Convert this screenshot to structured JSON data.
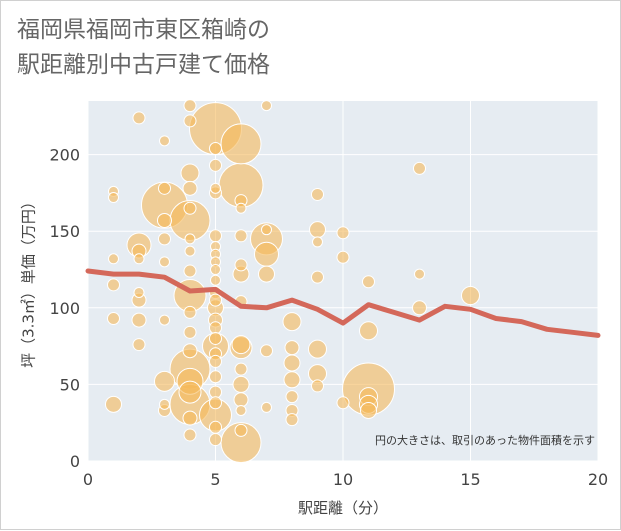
{
  "title": {
    "line1": "福岡県福岡市東区箱崎の",
    "line2": "駅距離別中古戸建て価格"
  },
  "colors": {
    "bubble": "#f5b95a",
    "line": "#d4685a",
    "plot_bg": "#e6ecf2",
    "grid": "#ffffff"
  },
  "chart_data": {
    "type": "scatter",
    "title": "福岡県福岡市東区箱崎の駅距離別中古戸建て価格",
    "xlabel": "駅距離（分）",
    "ylabel": "坪（3.3㎡）単価（万円）",
    "xlim": [
      0,
      20
    ],
    "ylim": [
      0,
      235
    ],
    "x_ticks": [
      0,
      5,
      10,
      15,
      20
    ],
    "y_ticks": [
      0,
      50,
      100,
      150,
      200
    ],
    "grid": true,
    "note": "円の大きさは、取引のあった物件面積を示す",
    "trend_line": {
      "x": [
        0,
        1,
        2,
        3,
        4,
        5,
        6,
        7,
        8,
        9,
        10,
        11,
        12,
        13,
        14,
        15,
        16,
        17,
        18,
        19,
        20
      ],
      "y": [
        124,
        122,
        122,
        120,
        111,
        112,
        101,
        100,
        105,
        99,
        90,
        102,
        97,
        92,
        101,
        99,
        93,
        91,
        86,
        84,
        82
      ]
    },
    "points": [
      {
        "x": 1,
        "y": 176,
        "s": 5
      },
      {
        "x": 1,
        "y": 172,
        "s": 5
      },
      {
        "x": 1,
        "y": 132,
        "s": 5
      },
      {
        "x": 1,
        "y": 115,
        "s": 6
      },
      {
        "x": 1,
        "y": 93,
        "s": 6
      },
      {
        "x": 1,
        "y": 37,
        "s": 8
      },
      {
        "x": 2,
        "y": 224,
        "s": 6
      },
      {
        "x": 2,
        "y": 141,
        "s": 12
      },
      {
        "x": 2,
        "y": 137,
        "s": 7
      },
      {
        "x": 2,
        "y": 132,
        "s": 5
      },
      {
        "x": 2,
        "y": 110,
        "s": 5
      },
      {
        "x": 2,
        "y": 105,
        "s": 7
      },
      {
        "x": 2,
        "y": 92,
        "s": 7
      },
      {
        "x": 2,
        "y": 76,
        "s": 6
      },
      {
        "x": 3,
        "y": 209,
        "s": 5
      },
      {
        "x": 3,
        "y": 178,
        "s": 6
      },
      {
        "x": 3,
        "y": 167,
        "s": 23
      },
      {
        "x": 3,
        "y": 157,
        "s": 7
      },
      {
        "x": 3,
        "y": 145,
        "s": 6
      },
      {
        "x": 3,
        "y": 130,
        "s": 5
      },
      {
        "x": 3,
        "y": 92,
        "s": 5
      },
      {
        "x": 3,
        "y": 52,
        "s": 10
      },
      {
        "x": 3,
        "y": 37,
        "s": 5
      },
      {
        "x": 3,
        "y": 33,
        "s": 6
      },
      {
        "x": 4,
        "y": 232,
        "s": 6
      },
      {
        "x": 4,
        "y": 222,
        "s": 6
      },
      {
        "x": 4,
        "y": 188,
        "s": 9
      },
      {
        "x": 4,
        "y": 178,
        "s": 7
      },
      {
        "x": 4,
        "y": 165,
        "s": 6
      },
      {
        "x": 4,
        "y": 157,
        "s": 20
      },
      {
        "x": 4,
        "y": 145,
        "s": 5
      },
      {
        "x": 4,
        "y": 137,
        "s": 5
      },
      {
        "x": 4,
        "y": 124,
        "s": 6
      },
      {
        "x": 4,
        "y": 108,
        "s": 16
      },
      {
        "x": 4,
        "y": 97,
        "s": 6
      },
      {
        "x": 4,
        "y": 84,
        "s": 6
      },
      {
        "x": 4,
        "y": 72,
        "s": 7
      },
      {
        "x": 4,
        "y": 60,
        "s": 20
      },
      {
        "x": 4,
        "y": 52,
        "s": 13
      },
      {
        "x": 4,
        "y": 45,
        "s": 11
      },
      {
        "x": 4,
        "y": 37,
        "s": 20
      },
      {
        "x": 4,
        "y": 28,
        "s": 7
      },
      {
        "x": 4,
        "y": 17,
        "s": 6
      },
      {
        "x": 5,
        "y": 217,
        "s": 26
      },
      {
        "x": 5,
        "y": 204,
        "s": 6
      },
      {
        "x": 5,
        "y": 193,
        "s": 6
      },
      {
        "x": 5,
        "y": 178,
        "s": 5
      },
      {
        "x": 5,
        "y": 175,
        "s": 6
      },
      {
        "x": 5,
        "y": 147,
        "s": 6
      },
      {
        "x": 5,
        "y": 140,
        "s": 5
      },
      {
        "x": 5,
        "y": 135,
        "s": 5
      },
      {
        "x": 5,
        "y": 130,
        "s": 5
      },
      {
        "x": 5,
        "y": 125,
        "s": 5
      },
      {
        "x": 5,
        "y": 118,
        "s": 5
      },
      {
        "x": 5,
        "y": 110,
        "s": 6
      },
      {
        "x": 5,
        "y": 105,
        "s": 6
      },
      {
        "x": 5,
        "y": 100,
        "s": 8
      },
      {
        "x": 5,
        "y": 92,
        "s": 7
      },
      {
        "x": 5,
        "y": 87,
        "s": 6
      },
      {
        "x": 5,
        "y": 80,
        "s": 6
      },
      {
        "x": 5,
        "y": 75,
        "s": 13
      },
      {
        "x": 5,
        "y": 70,
        "s": 6
      },
      {
        "x": 5,
        "y": 65,
        "s": 6
      },
      {
        "x": 5,
        "y": 55,
        "s": 6
      },
      {
        "x": 5,
        "y": 45,
        "s": 6
      },
      {
        "x": 5,
        "y": 38,
        "s": 6
      },
      {
        "x": 5,
        "y": 30,
        "s": 16
      },
      {
        "x": 5,
        "y": 22,
        "s": 6
      },
      {
        "x": 5,
        "y": 14,
        "s": 6
      },
      {
        "x": 6,
        "y": 207,
        "s": 20
      },
      {
        "x": 6,
        "y": 180,
        "s": 22
      },
      {
        "x": 6,
        "y": 170,
        "s": 6
      },
      {
        "x": 6,
        "y": 165,
        "s": 5
      },
      {
        "x": 6,
        "y": 147,
        "s": 6
      },
      {
        "x": 6,
        "y": 128,
        "s": 6
      },
      {
        "x": 6,
        "y": 122,
        "s": 8
      },
      {
        "x": 6,
        "y": 104,
        "s": 6
      },
      {
        "x": 6,
        "y": 76,
        "s": 9
      },
      {
        "x": 6,
        "y": 74,
        "s": 11
      },
      {
        "x": 6,
        "y": 60,
        "s": 6
      },
      {
        "x": 6,
        "y": 50,
        "s": 8
      },
      {
        "x": 6,
        "y": 40,
        "s": 7
      },
      {
        "x": 6,
        "y": 33,
        "s": 5
      },
      {
        "x": 6,
        "y": 20,
        "s": 6
      },
      {
        "x": 6,
        "y": 12,
        "s": 20
      },
      {
        "x": 7,
        "y": 232,
        "s": 5
      },
      {
        "x": 7,
        "y": 151,
        "s": 5
      },
      {
        "x": 7,
        "y": 145,
        "s": 16
      },
      {
        "x": 7,
        "y": 135,
        "s": 12
      },
      {
        "x": 7,
        "y": 122,
        "s": 8
      },
      {
        "x": 7,
        "y": 72,
        "s": 6
      },
      {
        "x": 7,
        "y": 35,
        "s": 5
      },
      {
        "x": 8,
        "y": 91,
        "s": 9
      },
      {
        "x": 8,
        "y": 74,
        "s": 7
      },
      {
        "x": 8,
        "y": 64,
        "s": 8
      },
      {
        "x": 8,
        "y": 53,
        "s": 8
      },
      {
        "x": 8,
        "y": 42,
        "s": 6
      },
      {
        "x": 8,
        "y": 33,
        "s": 6
      },
      {
        "x": 8,
        "y": 27,
        "s": 6
      },
      {
        "x": 9,
        "y": 174,
        "s": 6
      },
      {
        "x": 9,
        "y": 151,
        "s": 8
      },
      {
        "x": 9,
        "y": 143,
        "s": 5
      },
      {
        "x": 9,
        "y": 120,
        "s": 6
      },
      {
        "x": 9,
        "y": 73,
        "s": 9
      },
      {
        "x": 9,
        "y": 57,
        "s": 9
      },
      {
        "x": 9,
        "y": 49,
        "s": 6
      },
      {
        "x": 10,
        "y": 149,
        "s": 6
      },
      {
        "x": 10,
        "y": 133,
        "s": 6
      },
      {
        "x": 10,
        "y": 38,
        "s": 6
      },
      {
        "x": 11,
        "y": 117,
        "s": 6
      },
      {
        "x": 11,
        "y": 85,
        "s": 9
      },
      {
        "x": 11,
        "y": 47,
        "s": 26
      },
      {
        "x": 11,
        "y": 42,
        "s": 9
      },
      {
        "x": 11,
        "y": 37,
        "s": 9
      },
      {
        "x": 11,
        "y": 33,
        "s": 8
      },
      {
        "x": 13,
        "y": 191,
        "s": 6
      },
      {
        "x": 13,
        "y": 122,
        "s": 5
      },
      {
        "x": 13,
        "y": 100,
        "s": 7
      },
      {
        "x": 15,
        "y": 108,
        "s": 9
      }
    ]
  }
}
